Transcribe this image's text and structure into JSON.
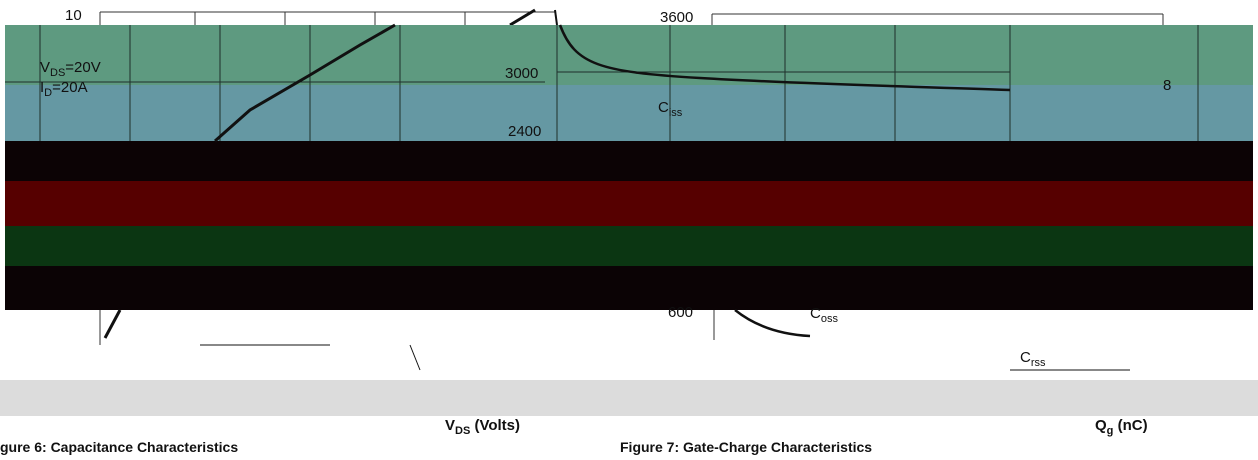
{
  "left_chart": {
    "y_tick_top": "10",
    "vds_label": {
      "main": "V",
      "sub": "DS",
      "rest": "=20V"
    },
    "id_label": {
      "main": "I",
      "sub": "D",
      "rest": "=20A"
    },
    "x_axis_label": {
      "main": "V",
      "sub": "DS",
      "rest": " (Volts)"
    },
    "caption": "gure 6: Capacitance Characteristics"
  },
  "right_chart": {
    "yticks": [
      "3600",
      "3000",
      "2400",
      "600"
    ],
    "ciss": {
      "main": "C",
      "sub": "iss"
    },
    "coss": {
      "main": "C",
      "sub": "oss"
    },
    "crss": {
      "main": "C",
      "sub": "rss"
    },
    "edge_digit": "8",
    "x_axis_label": {
      "main": "Q",
      "sub": "g",
      "rest": " (nC)"
    },
    "caption": "Figure 7: Gate-Charge Characteristics"
  }
}
